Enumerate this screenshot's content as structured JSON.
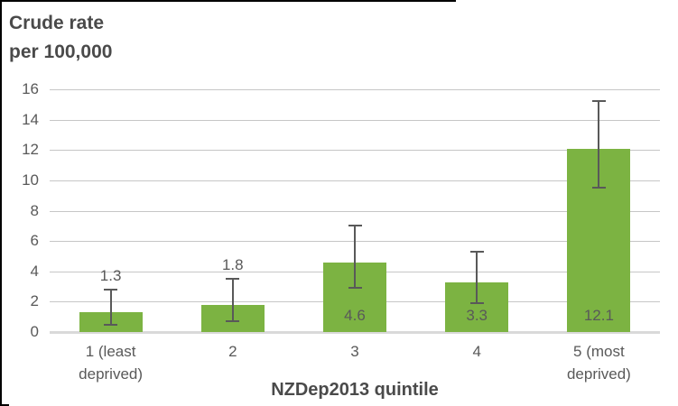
{
  "header": {
    "title_line1": "Crude rate",
    "title_line2": "per 100,000"
  },
  "chart_data": {
    "type": "bar",
    "title": "Crude rate per 100,000",
    "xlabel": "NZDep2013 quintile",
    "ylabel": "Crude rate per 100,000",
    "categories": [
      "1 (least deprived)",
      "2",
      "3",
      "4",
      "5 (most deprived)"
    ],
    "values": [
      1.3,
      1.8,
      4.6,
      3.3,
      12.1
    ],
    "data_labels": [
      "1.3",
      "1.8",
      "4.6",
      "3.3",
      "12.1"
    ],
    "label_position": [
      "above",
      "above",
      "inside-base",
      "inside-base",
      "inside-base"
    ],
    "error_low": [
      0.5,
      0.7,
      2.9,
      1.9,
      9.5
    ],
    "error_high": [
      2.8,
      3.5,
      7.0,
      5.3,
      15.2
    ],
    "ylim": [
      0,
      16
    ],
    "yticks": [
      0,
      2,
      4,
      6,
      8,
      10,
      12,
      14,
      16
    ],
    "grid": "horizontal",
    "legend": "none",
    "bar_color": "#7cb342",
    "gridline_color": "#c6c6c6",
    "baseline_color": "#d9d9d9",
    "error_bar_color": "#595959",
    "text_color": "#595959",
    "title_color": "#4a4a4a"
  }
}
